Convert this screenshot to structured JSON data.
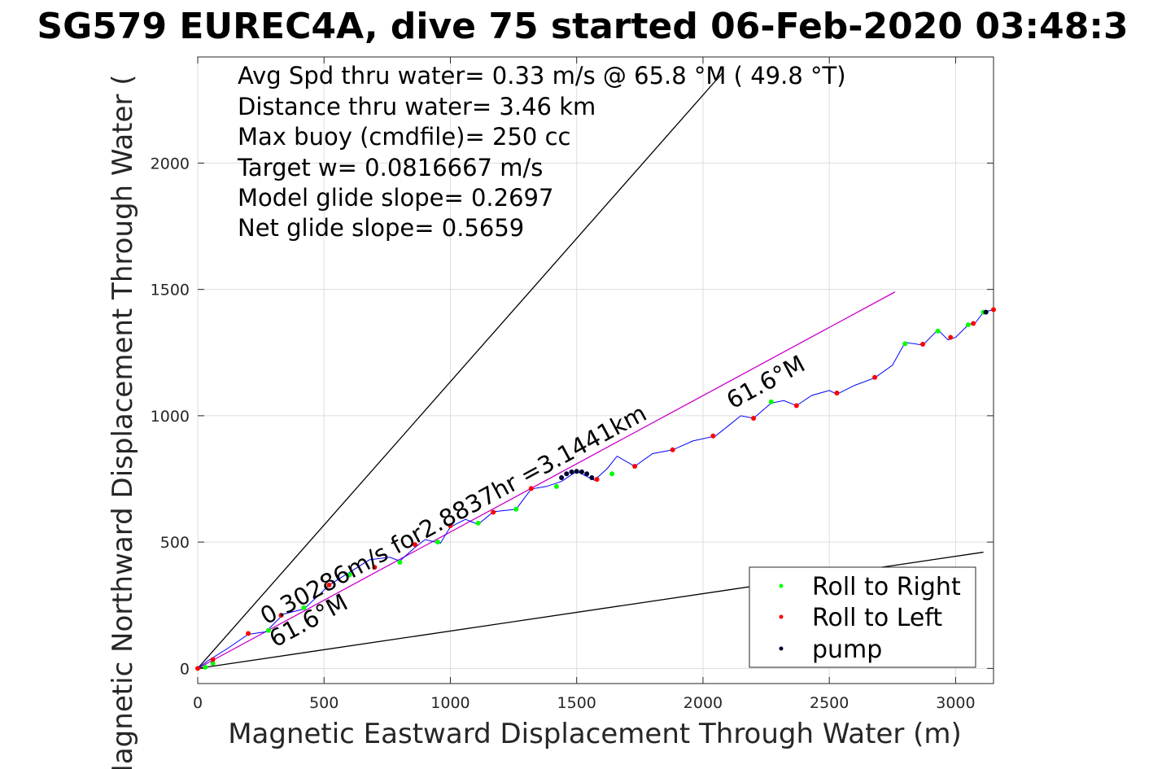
{
  "chart_data": {
    "type": "scatter",
    "title": "SG579 EUREC4A, dive 75 started 06-Feb-2020 03:48:3",
    "xlabel": "Magnetic Eastward Displacement Through Water (m)",
    "ylabel": "Magnetic Northward Displacement Through Water (",
    "xlim": [
      0,
      3150
    ],
    "ylim": [
      -60,
      2420
    ],
    "xticks": [
      0,
      500,
      1000,
      1500,
      2000,
      2500,
      3000
    ],
    "yticks": [
      0,
      500,
      1000,
      1500,
      2000
    ],
    "grid": true,
    "annotations": [
      "Avg Spd thru water=  0.33 m/s @  65.8 °M ( 49.8 °T)",
      "Distance thru water=  3.46 km",
      "Max buoy (cmdfile)= 250 cc",
      "Target w= 0.0816667 m/s",
      "Model glide slope= 0.2697",
      "Net glide slope= 0.5659"
    ],
    "rotated_labels": {
      "speed": "0.30286m/s for2.8837hr =3.1441km",
      "heading_low": "61.6°M",
      "heading_high": "61.6°M"
    },
    "reference_lines": [
      {
        "color": "#000000",
        "x": [
          0,
          2080
        ],
        "y": [
          0,
          2360
        ]
      },
      {
        "color": "#000000",
        "x": [
          0,
          3110
        ],
        "y": [
          0,
          460
        ]
      },
      {
        "color": "#cc00cc",
        "x": [
          0,
          2760
        ],
        "y": [
          0,
          1490
        ]
      }
    ],
    "track": {
      "name": "track",
      "color": "#0000ff",
      "x": [
        0,
        40,
        120,
        200,
        270,
        300,
        340,
        420,
        480,
        520,
        600,
        680,
        760,
        800,
        850,
        900,
        960,
        1000,
        1060,
        1110,
        1170,
        1260,
        1320,
        1380,
        1440,
        1500,
        1570,
        1620,
        1660,
        1730,
        1800,
        1880,
        1960,
        2050,
        2100,
        2150,
        2200,
        2270,
        2320,
        2370,
        2430,
        2500,
        2530,
        2600,
        2680,
        2750,
        2800,
        2870,
        2930,
        2970,
        3000,
        3050,
        3080,
        3110,
        3150
      ],
      "y": [
        0,
        30,
        80,
        135,
        145,
        175,
        215,
        235,
        290,
        330,
        380,
        430,
        440,
        425,
        470,
        510,
        495,
        560,
        590,
        570,
        620,
        630,
        710,
        720,
        740,
        780,
        745,
        790,
        840,
        800,
        850,
        865,
        900,
        920,
        960,
        1000,
        990,
        1050,
        1060,
        1040,
        1080,
        1100,
        1085,
        1120,
        1150,
        1200,
        1290,
        1280,
        1340,
        1300,
        1310,
        1360,
        1370,
        1410,
        1420
      ]
    },
    "series": [
      {
        "name": "Roll to Right",
        "color": "#00ff00",
        "x": [
          30,
          60,
          280,
          420,
          600,
          800,
          950,
          1110,
          1260,
          1420,
          1640,
          2270,
          2800,
          2930,
          3050,
          3110
        ],
        "y": [
          5,
          20,
          150,
          240,
          370,
          420,
          500,
          575,
          630,
          720,
          770,
          1055,
          1285,
          1335,
          1360,
          1410
        ]
      },
      {
        "name": "Roll to Left",
        "color": "#ff0000",
        "x": [
          0,
          60,
          200,
          330,
          520,
          700,
          860,
          1000,
          1170,
          1320,
          1580,
          1730,
          1880,
          2040,
          2200,
          2370,
          2530,
          2680,
          2870,
          2980,
          3070,
          3150
        ],
        "y": [
          0,
          35,
          138,
          210,
          330,
          400,
          490,
          565,
          618,
          712,
          748,
          800,
          865,
          920,
          990,
          1040,
          1090,
          1152,
          1283,
          1310,
          1365,
          1420
        ]
      },
      {
        "name": "pump",
        "color": "#000033",
        "x": [
          1440,
          1460,
          1480,
          1500,
          1520,
          1540,
          1560,
          3120
        ],
        "y": [
          755,
          770,
          778,
          780,
          778,
          770,
          755,
          1410
        ]
      }
    ],
    "legend": {
      "placement": "bottom-right",
      "entries": [
        "Roll to Right",
        "Roll to Left",
        "pump"
      ]
    }
  }
}
